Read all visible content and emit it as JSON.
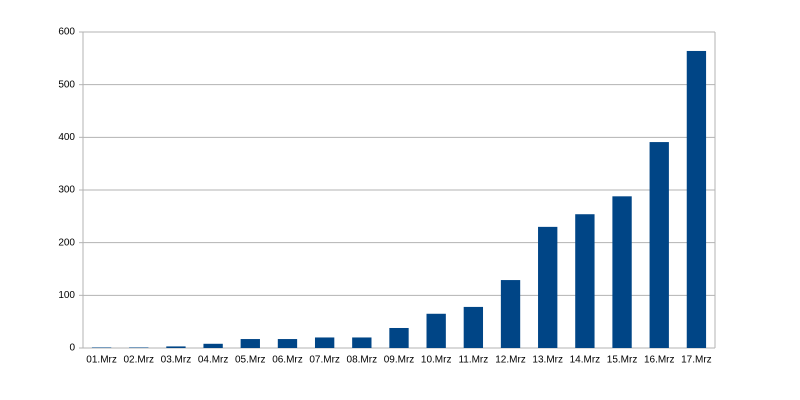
{
  "chart_data": {
    "type": "bar",
    "categories": [
      "01.Mrz",
      "02.Mrz",
      "03.Mrz",
      "04.Mrz",
      "05.Mrz",
      "06.Mrz",
      "07.Mrz",
      "08.Mrz",
      "09.Mrz",
      "10.Mrz",
      "11.Mrz",
      "12.Mrz",
      "13.Mrz",
      "14.Mrz",
      "15.Mrz",
      "16.Mrz",
      "17.Mrz"
    ],
    "values": [
      1,
      1,
      3,
      8,
      17,
      17,
      20,
      20,
      38,
      65,
      78,
      129,
      230,
      254,
      288,
      391,
      564
    ],
    "color": "#004586",
    "ylim": [
      0,
      600
    ],
    "yticks": [
      0,
      100,
      200,
      300,
      400,
      500,
      600
    ],
    "grid": true
  }
}
